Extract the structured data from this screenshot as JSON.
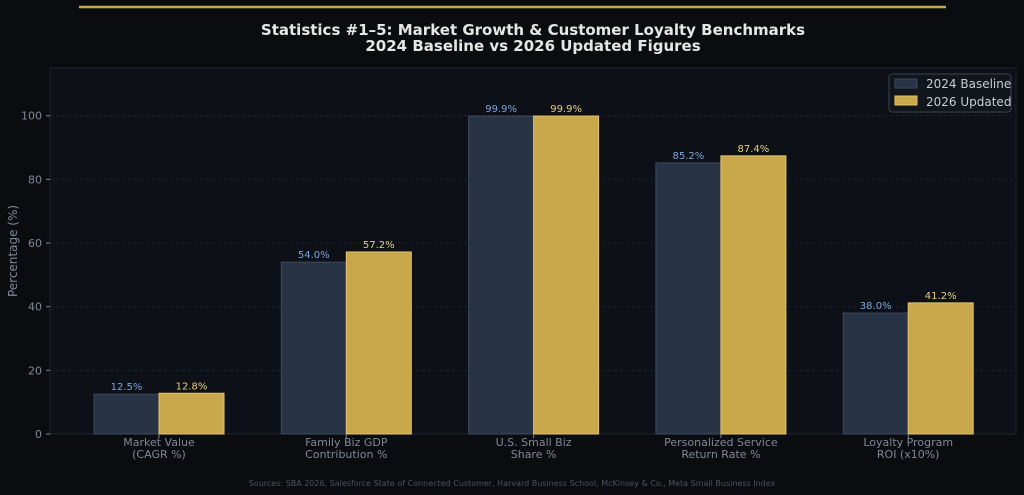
{
  "colors": {
    "background": "#0b0c10",
    "plot_background": "#0d1016",
    "accent_line": "#c9a84c",
    "baseline_fill": "#283445",
    "baseline_edge": "#3b4a5e",
    "baseline_label": "#7aa7dd",
    "updated_fill": "#c9a84c",
    "updated_edge": "#e2c56b",
    "updated_label": "#e8cf78",
    "title": "#e6e6e6",
    "tick_text": "#7f8896",
    "source_text": "#4b5361"
  },
  "chart_data": {
    "type": "bar",
    "title": "Statistics #1–5: Market Growth & Customer Loyalty Benchmarks",
    "subtitle": "2024 Baseline vs 2026 Updated Figures",
    "ylabel": "Percentage (%)",
    "xlabel": "",
    "ylim": [
      0,
      115
    ],
    "yticks": [
      "0",
      "20",
      "40",
      "60",
      "80",
      "100"
    ],
    "grid": true,
    "legend_position": "top-right",
    "categories": [
      [
        "Market Value",
        "(CAGR %)"
      ],
      [
        "Family Biz GDP",
        "Contribution %"
      ],
      [
        "U.S. Small Biz",
        "Share %"
      ],
      [
        "Personalized Service",
        "Return Rate %"
      ],
      [
        "Loyalty Program",
        "ROI (x10%)"
      ]
    ],
    "series": [
      {
        "name": "2024 Baseline",
        "values": [
          12.5,
          54.0,
          99.9,
          85.2,
          38.0
        ],
        "labels": [
          "12.5%",
          "54.0%",
          "99.9%",
          "85.2%",
          "38.0%"
        ]
      },
      {
        "name": "2026 Updated",
        "values": [
          12.8,
          57.2,
          99.9,
          87.4,
          41.2
        ],
        "labels": [
          "12.8%",
          "57.2%",
          "99.9%",
          "87.4%",
          "41.2%"
        ]
      }
    ],
    "source": "Sources: SBA 2026, Salesforce State of Connected Customer, Harvard Business School, McKinsey & Co., Meta Small Business Index"
  }
}
